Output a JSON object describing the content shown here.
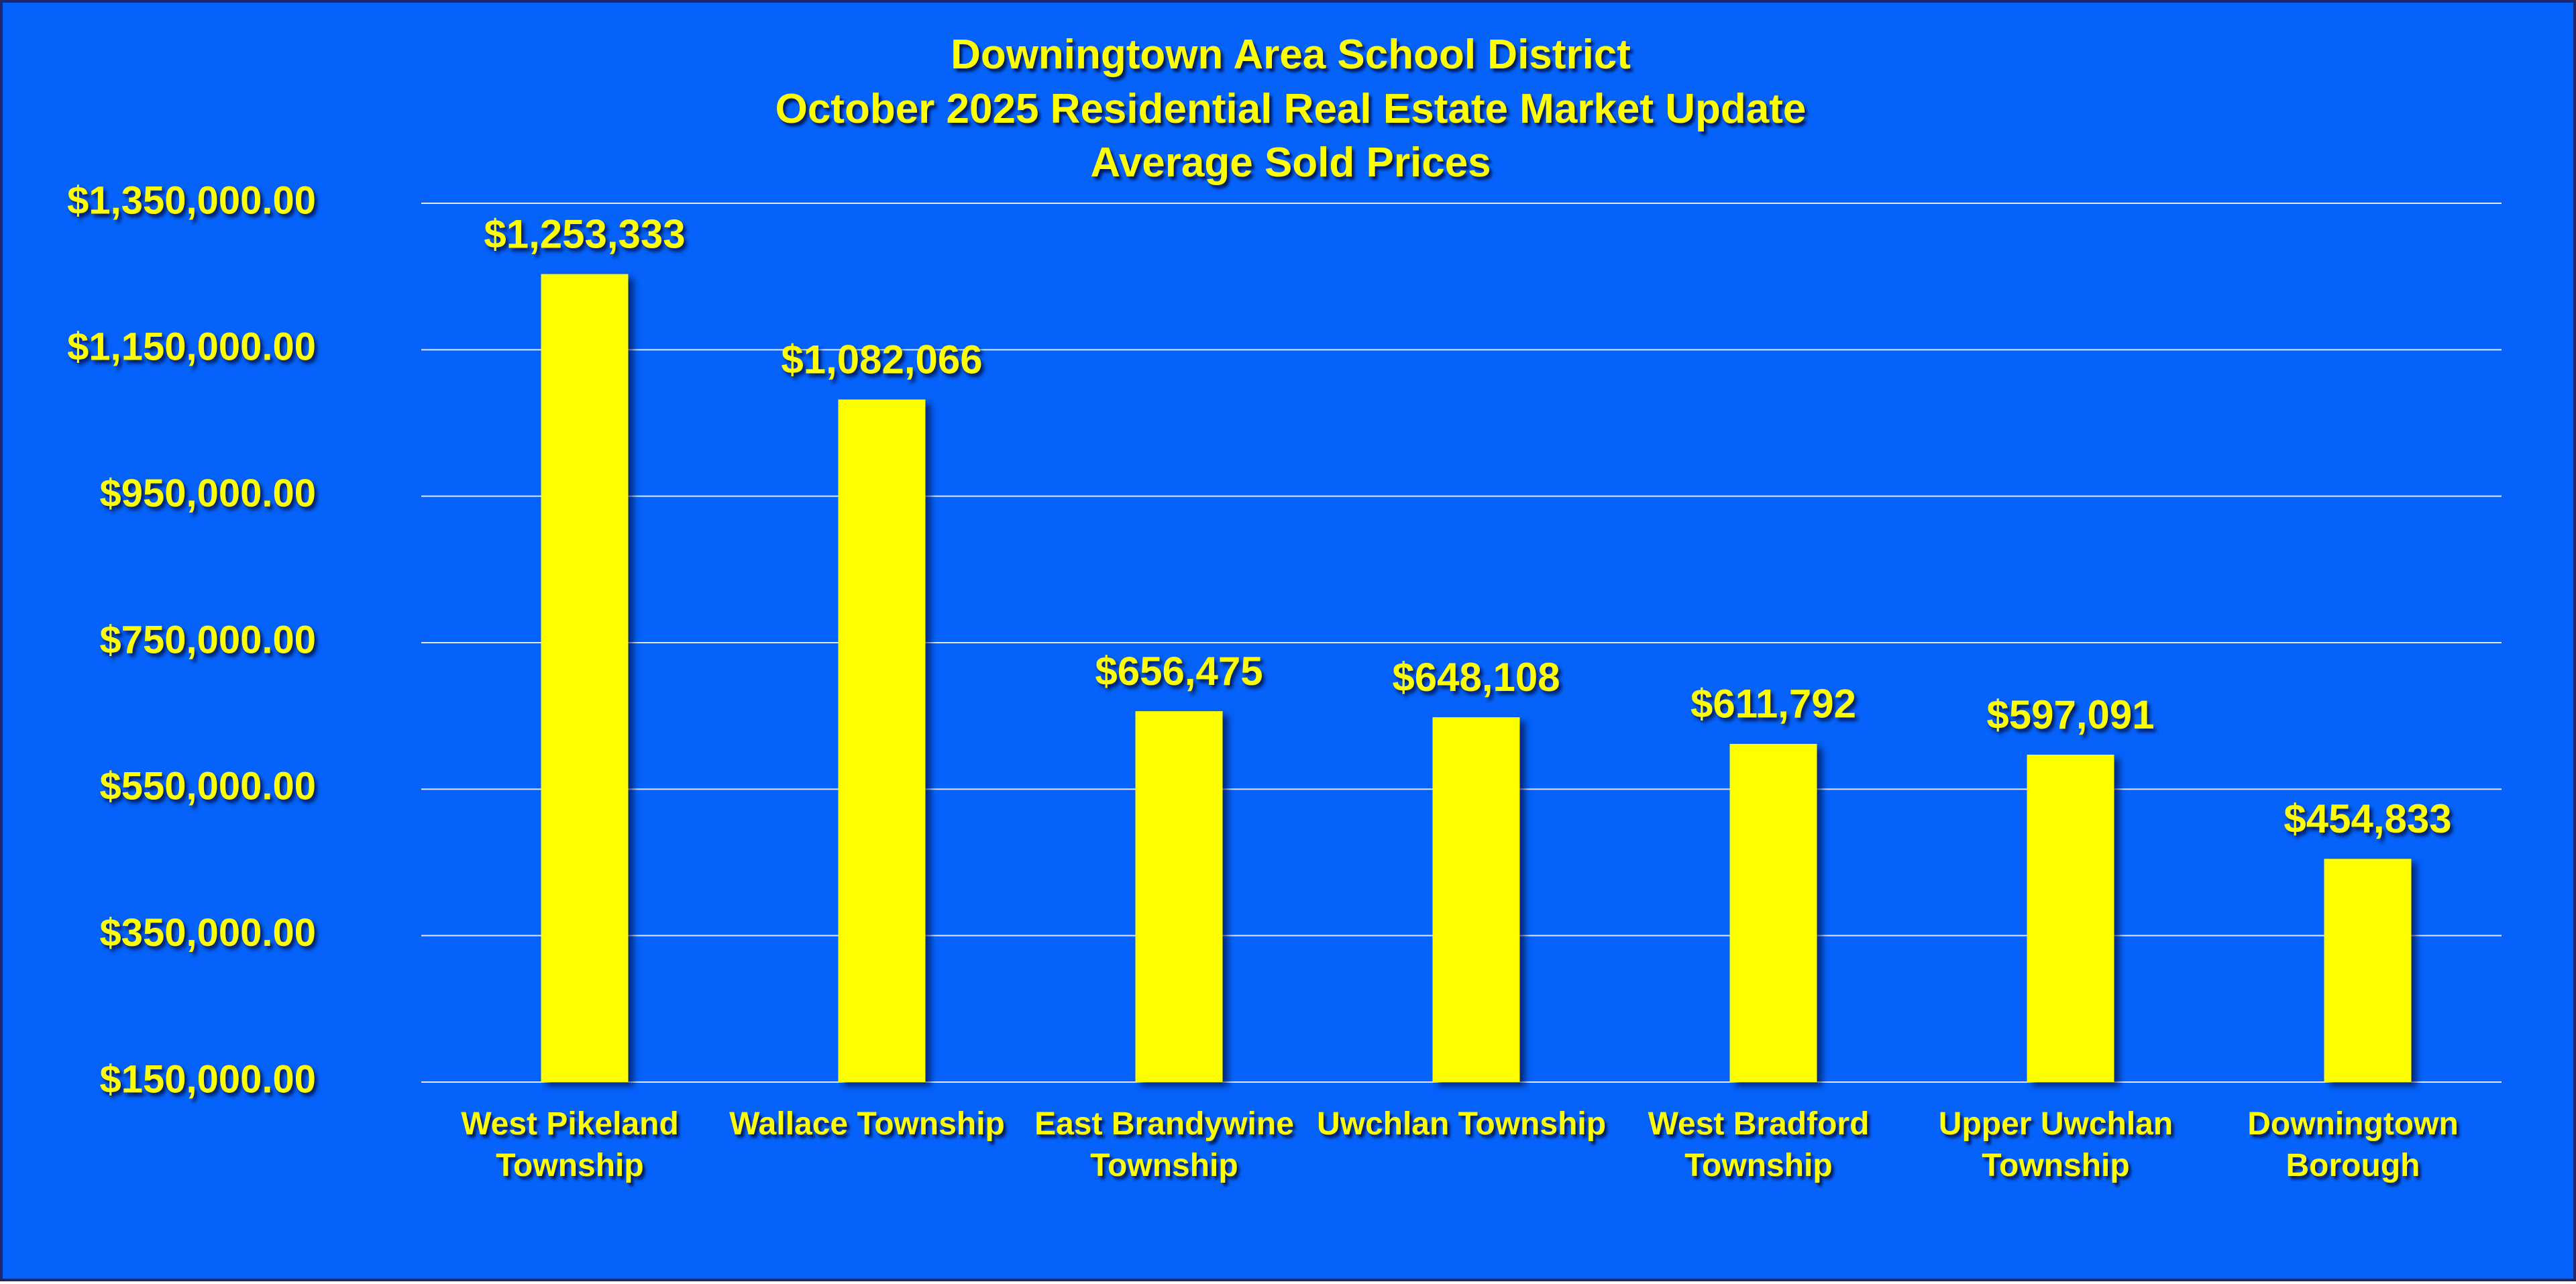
{
  "chart_data": {
    "type": "bar",
    "title": "Downingtown Area School District\nOctober 2025 Residential Real Estate Market Update\nAverage Sold Prices",
    "categories": [
      "West Pikeland\nTownship",
      "Wallace Township",
      "East Brandywine\nTownship",
      "Uwchlan Township",
      "West Bradford\nTownship",
      "Upper Uwchlan\nTownship",
      "Downingtown\nBorough"
    ],
    "values": [
      1253333,
      1082066,
      656475,
      648108,
      611792,
      597091,
      454833
    ],
    "value_labels": [
      "$1,253,333",
      "$1,082,066",
      "$656,475",
      "$648,108",
      "$611,792",
      "$597,091",
      "$454,833"
    ],
    "color": "#ffff00",
    "ylim": [
      150000,
      1350000
    ],
    "yticks": [
      {
        "value": 150000,
        "label": "$150,000.00"
      },
      {
        "value": 350000,
        "label": "$350,000.00"
      },
      {
        "value": 550000,
        "label": "$550,000.00"
      },
      {
        "value": 750000,
        "label": "$750,000.00"
      },
      {
        "value": 950000,
        "label": "$950,000.00"
      },
      {
        "value": 1150000,
        "label": "$1,150,000.00"
      },
      {
        "value": 1350000,
        "label": "$1,350,000.00"
      }
    ],
    "grid": true
  }
}
